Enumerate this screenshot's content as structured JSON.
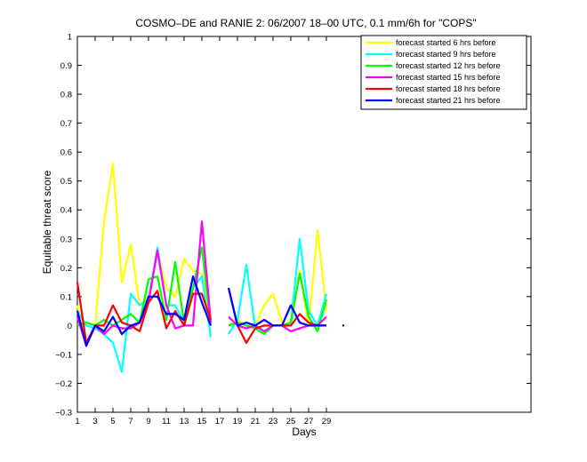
{
  "chart_data": {
    "type": "line",
    "title": "COSMO–DE and RANIE 2: 06/2007 18–00 UTC, 0.1 mm/6h for \"COPS\"",
    "xlabel": "Days",
    "ylabel": "Equitable threat score",
    "xlim": [
      1,
      52
    ],
    "ylim": [
      -0.3,
      1
    ],
    "x_ticks": [
      1,
      3,
      5,
      7,
      9,
      11,
      13,
      15,
      17,
      19,
      21,
      23,
      25,
      27,
      29
    ],
    "y_ticks": [
      -0.3,
      -0.2,
      -0.1,
      0,
      0.1,
      0.2,
      0.3,
      0.4,
      0.5,
      0.6,
      0.7,
      0.8,
      0.9,
      1
    ],
    "y_tick_labels": [
      "−0.3",
      "−0.2",
      "−0.1",
      "0",
      "0.1",
      "0.2",
      "0.3",
      "0.4",
      "0.5",
      "0.6",
      "0.7",
      "0.8",
      "0.9",
      "1"
    ],
    "legend_position": "top-right",
    "grid": false,
    "x": [
      1,
      2,
      3,
      4,
      5,
      6,
      7,
      8,
      9,
      10,
      11,
      12,
      13,
      14,
      15,
      16,
      17,
      18,
      19,
      20,
      21,
      22,
      23,
      24,
      25,
      26,
      27,
      28,
      29,
      30,
      31
    ],
    "series": [
      {
        "name": "forecast started 6 hrs before",
        "color": "#ffff00",
        "values": [
          0.07,
          -0.06,
          0.0,
          0.36,
          0.56,
          0.15,
          0.28,
          0.07,
          0.1,
          0.26,
          0.13,
          0.1,
          0.23,
          0.19,
          0.18,
          0.02,
          null,
          0.0,
          0.02,
          0.0,
          0.0,
          0.07,
          0.11,
          0.01,
          0.0,
          0.19,
          0.0,
          0.33,
          0.05,
          null,
          0.0
        ]
      },
      {
        "name": "forecast started 9 hrs before",
        "color": "#00ffff",
        "values": [
          0.05,
          0.0,
          -0.01,
          -0.03,
          -0.06,
          -0.16,
          0.11,
          0.07,
          0.09,
          0.27,
          0.07,
          0.07,
          0.01,
          0.13,
          0.17,
          -0.04,
          null,
          -0.03,
          0.02,
          0.21,
          -0.01,
          -0.03,
          0.0,
          0.0,
          0.01,
          0.3,
          0.05,
          0.0,
          0.11,
          null,
          null
        ]
      },
      {
        "name": "forecast started 12 hrs before",
        "color": "#00ff00",
        "values": [
          0.0,
          0.01,
          0.0,
          0.02,
          0.0,
          0.02,
          0.04,
          0.01,
          0.16,
          0.17,
          0.02,
          0.22,
          0.01,
          0.13,
          0.27,
          0.0,
          null,
          0.0,
          0.01,
          0.0,
          -0.01,
          -0.03,
          0.0,
          0.0,
          0.01,
          0.18,
          0.03,
          -0.02,
          0.09,
          null,
          null
        ]
      },
      {
        "name": "forecast started 15 hrs before",
        "color": "#ff00ff",
        "values": [
          0.03,
          -0.07,
          0.0,
          -0.03,
          0.0,
          -0.01,
          -0.01,
          0.01,
          0.08,
          0.26,
          0.07,
          -0.01,
          0.0,
          0.0,
          0.36,
          0.01,
          null,
          0.03,
          0.0,
          -0.01,
          0.0,
          -0.02,
          0.0,
          0.0,
          -0.02,
          -0.01,
          0.0,
          0.0,
          0.03,
          null,
          null
        ]
      },
      {
        "name": "forecast started 18 hrs before",
        "color": "#ff0000",
        "values": [
          0.15,
          -0.06,
          0.0,
          0.0,
          0.07,
          0.01,
          0.0,
          -0.02,
          0.08,
          0.12,
          -0.01,
          0.05,
          0.0,
          0.11,
          0.11,
          0.02,
          null,
          0.13,
          0.0,
          -0.06,
          -0.01,
          0.0,
          0.0,
          0.0,
          0.0,
          0.04,
          0.01,
          0.0,
          0.0,
          null,
          null
        ]
      },
      {
        "name": "forecast started 21 hrs before",
        "color": "#0000ff",
        "values": [
          0.05,
          -0.07,
          0.0,
          -0.02,
          0.03,
          -0.03,
          0.0,
          0.01,
          0.1,
          0.1,
          0.04,
          0.04,
          0.02,
          0.17,
          0.08,
          0.0,
          null,
          0.13,
          0.0,
          0.01,
          0.0,
          0.02,
          0.0,
          0.0,
          0.07,
          0.01,
          0.0,
          0.0,
          0.0,
          null,
          0.0
        ]
      }
    ]
  }
}
